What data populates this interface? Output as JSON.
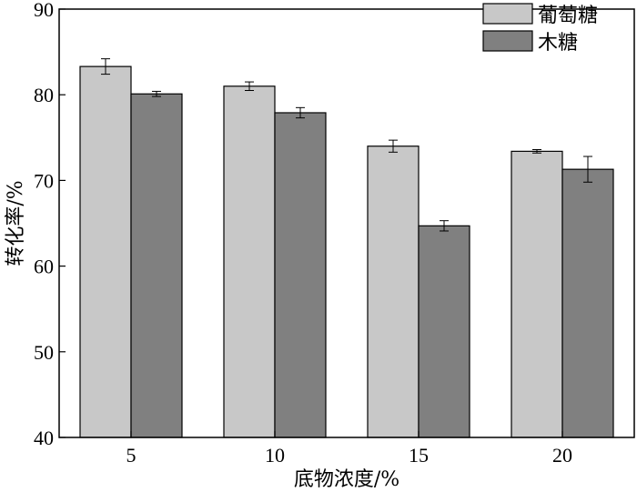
{
  "chart_data": {
    "type": "bar",
    "categories": [
      "5",
      "10",
      "15",
      "20"
    ],
    "series": [
      {
        "name": "葡萄糖",
        "color": "#c8c8c8",
        "values": [
          83.3,
          81.0,
          74.0,
          73.4
        ],
        "errors": [
          0.9,
          0.5,
          0.7,
          0.2
        ]
      },
      {
        "name": "木糖",
        "color": "#808080",
        "values": [
          80.1,
          77.9,
          64.7,
          71.3
        ],
        "errors": [
          0.3,
          0.6,
          0.6,
          1.5
        ]
      }
    ],
    "xlabel": "底物浓度/%",
    "ylabel": "转化率/%",
    "ylim": [
      40,
      90
    ],
    "yticks": [
      40,
      50,
      60,
      70,
      80,
      90
    ],
    "legend_position": "top-right",
    "grid": false
  }
}
